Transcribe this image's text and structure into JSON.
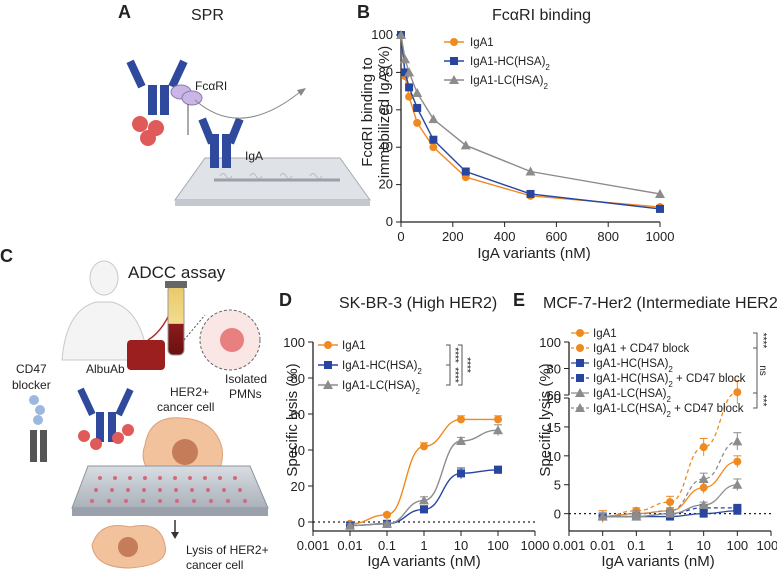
{
  "colors": {
    "orange": "#ef8a20",
    "blue": "#2846a0",
    "gray": "#8c8c8c",
    "iga": "#2f4a9c",
    "red": "#e05a5a"
  },
  "illustration_a": {
    "panel": "A",
    "title": "SPR",
    "receptor_label": "FcαRI",
    "iga_label": "IgA"
  },
  "illustration_c": {
    "panel": "C",
    "title": "ADCC assay",
    "cd47_label_1": "CD47",
    "cd47_label_2": "blocker",
    "albuab_label": "AlbuAb",
    "her2_label_1": "HER2+",
    "her2_label_2": "cancer cell",
    "pmn_label_1": "Isolated",
    "pmn_label_2": "PMNs",
    "lysis_label_1": "Lysis of HER2+",
    "lysis_label_2": "cancer cell"
  },
  "chart_data": [
    {
      "panel": "B",
      "type": "line",
      "title": "FcαRI binding",
      "xlabel": "IgA variants (nM)",
      "ylabel_line1": "FcαRI binding to",
      "ylabel_line2": "immobilized IgA (%)",
      "xlim": [
        0,
        1000
      ],
      "ylim": [
        0,
        100
      ],
      "xticks": [
        0,
        200,
        400,
        600,
        800,
        1000
      ],
      "yticks": [
        0,
        20,
        40,
        60,
        80,
        100
      ],
      "x": [
        0,
        15.6,
        31.25,
        62.5,
        125,
        250,
        500,
        1000
      ],
      "series": [
        {
          "name": "IgA1",
          "color": "orange",
          "marker": "circle",
          "values": [
            100,
            78,
            67,
            53,
            40,
            24,
            14,
            8
          ]
        },
        {
          "name": "IgA1-HC(HSA)",
          "sub": "2",
          "color": "blue",
          "marker": "square",
          "values": [
            100,
            80,
            72,
            61,
            44,
            27,
            15,
            7
          ]
        },
        {
          "name": "IgA1-LC(HSA)",
          "sub": "2",
          "color": "gray",
          "marker": "triangle",
          "values": [
            100,
            87,
            80,
            69,
            55,
            41,
            27,
            15
          ]
        }
      ],
      "legend_position": "top-right"
    },
    {
      "panel": "D",
      "type": "line",
      "title": "SK-BR-3 (High HER2)",
      "xlabel": "IgA variants (nM)",
      "ylabel": "Specific lysis (%)",
      "xscale": "log",
      "xlim": [
        0.001,
        1000
      ],
      "ylim": [
        -5,
        100
      ],
      "xticks": [
        0.001,
        0.01,
        0.1,
        1,
        10,
        100,
        1000
      ],
      "xticklabels": [
        "0.001",
        "0.01",
        "0.1",
        "1",
        "10",
        "100",
        "1000"
      ],
      "yticks": [
        0,
        20,
        40,
        60,
        80,
        100
      ],
      "x": [
        0.01,
        0.1,
        1,
        10,
        100
      ],
      "series": [
        {
          "name": "IgA1",
          "color": "orange",
          "marker": "circle",
          "values": [
            -1,
            4,
            42,
            57,
            57
          ],
          "err": [
            1,
            1,
            2,
            2,
            2
          ]
        },
        {
          "name": "IgA1-HC(HSA)",
          "sub": "2",
          "color": "blue",
          "marker": "square",
          "values": [
            -2,
            -1,
            7,
            27,
            29
          ],
          "err": [
            1,
            1,
            2,
            3,
            2
          ]
        },
        {
          "name": "IgA1-LC(HSA)",
          "sub": "2",
          "color": "gray",
          "marker": "triangle",
          "values": [
            -2,
            -1,
            12,
            45,
            51
          ],
          "err": [
            1,
            1,
            2,
            2,
            3
          ]
        }
      ],
      "significance": [
        "****",
        "****",
        "****"
      ],
      "legend_position": "top-left"
    },
    {
      "panel": "E",
      "type": "line",
      "title": "MCF-7-Her2 (Intermediate HER2)",
      "xlabel": "IgA variants (nM)",
      "ylabel": "Specific lysis (%)",
      "xscale": "log",
      "broken_y_axis": true,
      "xlim": [
        0.001,
        1000
      ],
      "ylim_lower": [
        -3,
        20
      ],
      "ylim_upper": [
        60,
        100
      ],
      "xticks": [
        0.001,
        0.01,
        0.1,
        1,
        10,
        100,
        1000
      ],
      "xticklabels": [
        "0.001",
        "0.01",
        "0.1",
        "1",
        "10",
        "100",
        "1000"
      ],
      "yticks_lower": [
        0,
        5,
        10,
        15,
        20
      ],
      "yticks_upper": [
        60,
        80,
        100
      ],
      "x": [
        0.01,
        0.1,
        1,
        10,
        100
      ],
      "series": [
        {
          "name": "IgA1",
          "color": "orange",
          "marker": "circle",
          "dashed": false,
          "values": [
            -0.5,
            0,
            0.5,
            4.5,
            9
          ],
          "err": [
            1,
            0.5,
            0.5,
            1,
            1
          ]
        },
        {
          "name": "IgA1 + CD47 block",
          "color": "orange",
          "marker": "circle",
          "dashed": true,
          "values": [
            -0.5,
            0.5,
            2,
            11.5,
            21
          ],
          "err": [
            1,
            0.5,
            1,
            1.5,
            2
          ]
        },
        {
          "name": "IgA1-HC(HSA)",
          "sub": "2",
          "color": "blue",
          "marker": "square",
          "dashed": false,
          "values": [
            -0.5,
            -0.5,
            -0.5,
            0,
            0.5
          ],
          "err": [
            0.5,
            0.5,
            0.5,
            0.5,
            0.5
          ]
        },
        {
          "name": "IgA1-HC(HSA)",
          "sub": "2",
          "suffix": " + CD47 block",
          "color": "blue",
          "marker": "square",
          "dashed": true,
          "values": [
            -0.5,
            -0.5,
            0,
            1,
            1
          ],
          "err": [
            0.5,
            0.5,
            0.5,
            0.5,
            0.5
          ]
        },
        {
          "name": "IgA1-LC(HSA)",
          "sub": "2",
          "color": "gray",
          "marker": "triangle",
          "dashed": false,
          "values": [
            -0.5,
            -0.5,
            0,
            1.5,
            5
          ],
          "err": [
            0.5,
            0.5,
            0.5,
            0.5,
            1
          ]
        },
        {
          "name": "IgA1-LC(HSA)",
          "sub": "2",
          "suffix": " + CD47 block",
          "color": "gray",
          "marker": "triangle",
          "dashed": true,
          "values": [
            -0.5,
            0,
            0.5,
            6,
            12.5
          ],
          "err": [
            0.5,
            0.5,
            0.5,
            1,
            1.5
          ]
        }
      ],
      "significance": [
        "****",
        "ns",
        "***"
      ],
      "legend_position": "top-left"
    }
  ]
}
